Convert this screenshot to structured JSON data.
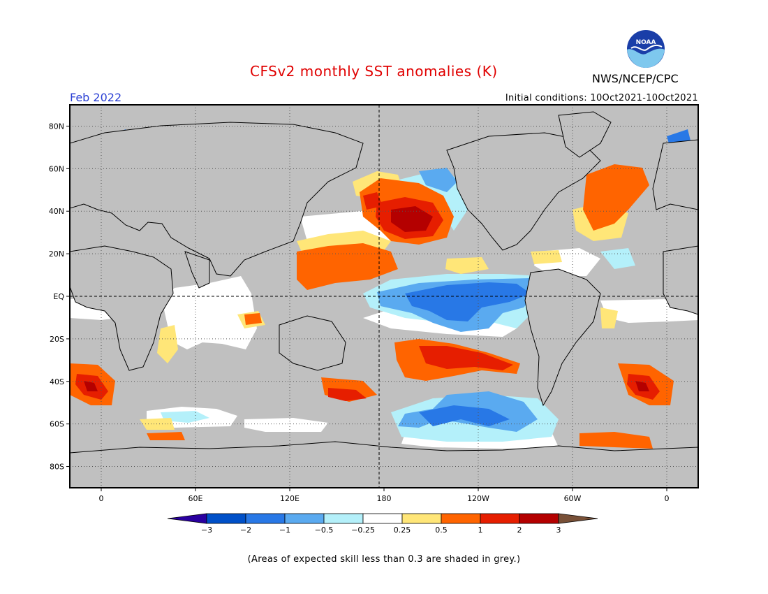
{
  "header": {
    "title": "CFSv2 monthly SST anomalies (K)",
    "agency": "NWS/NCEP/CPC",
    "logo_text": "NOAA",
    "month": "Feb 2022",
    "initial_conditions": "Initial conditions: 10Oct2021-10Oct2021"
  },
  "map": {
    "projection": "equirectangular",
    "lon_range": [
      -20,
      380
    ],
    "lat_range": [
      -90,
      90
    ],
    "lat_ticks": [
      "80N",
      "60N",
      "40N",
      "20N",
      "EQ",
      "20S",
      "40S",
      "60S",
      "80S"
    ],
    "lon_ticks": [
      "0",
      "60E",
      "120E",
      "180",
      "120W",
      "60W",
      "0"
    ],
    "land_color": "#c0c0c0",
    "grid": "dotted"
  },
  "colorbar": {
    "tick_labels": [
      "-3",
      "-2",
      "-1",
      "-0.5",
      "-0.25",
      "0.25",
      "0.5",
      "1",
      "2",
      "3"
    ],
    "colors": [
      "#2a00a0",
      "#0050c8",
      "#2878e6",
      "#5aaaf0",
      "#b4f0fa",
      "#ffffff",
      "#ffe678",
      "#ff6400",
      "#e61e00",
      "#b40000",
      "#785037"
    ]
  },
  "footnote": "(Areas of expected skill less than 0.3 are shaded in grey.)"
}
